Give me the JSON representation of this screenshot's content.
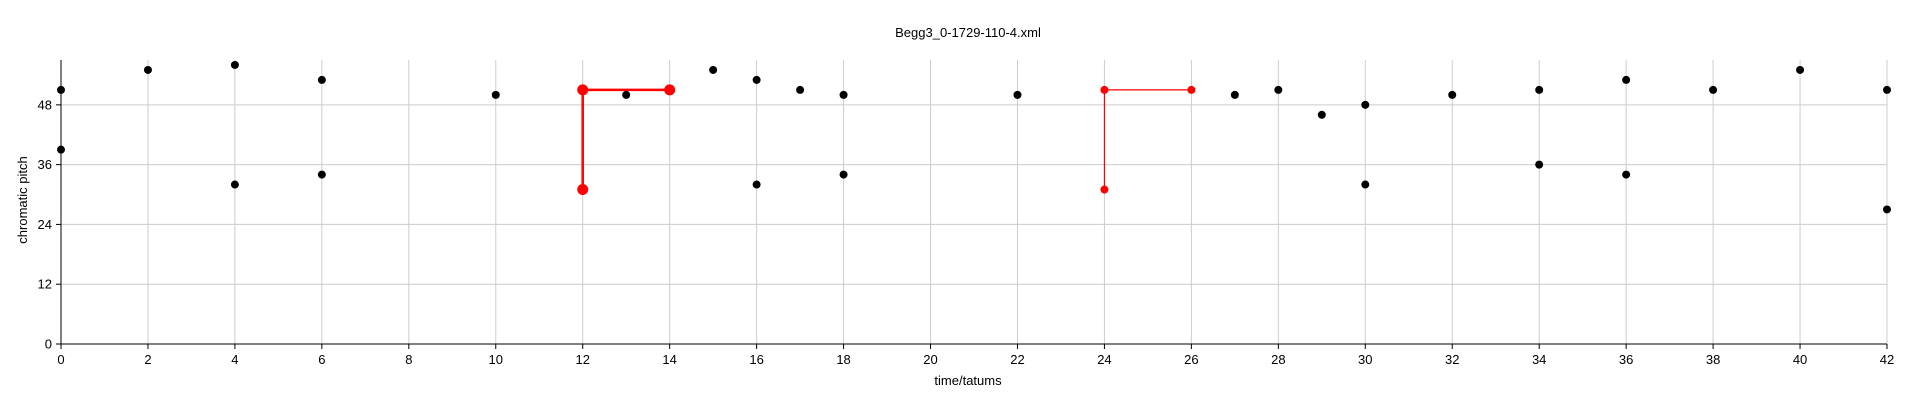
{
  "chart_data": {
    "type": "scatter",
    "title": "Begg3_0-1729-110-4.xml",
    "xlabel": "time/tatums",
    "ylabel": "chromatic pitch",
    "xlim": [
      0,
      42
    ],
    "ylim": [
      0,
      57
    ],
    "x_ticks": [
      0,
      2,
      4,
      6,
      8,
      10,
      12,
      14,
      16,
      18,
      20,
      22,
      24,
      26,
      28,
      30,
      32,
      34,
      36,
      38,
      40,
      42
    ],
    "y_ticks": [
      0,
      12,
      24,
      36,
      48
    ],
    "grid": true,
    "colors": {
      "points": "#000000",
      "highlight": "#ff0000",
      "grid": "#cccccc",
      "axis": "#000000"
    },
    "series": [
      {
        "points": [
          [
            0,
            51
          ],
          [
            0,
            39
          ],
          [
            2,
            55
          ],
          [
            4,
            56
          ],
          [
            4,
            32
          ],
          [
            6,
            53
          ],
          [
            6,
            34
          ],
          [
            10,
            50
          ],
          [
            13,
            50
          ],
          [
            15,
            55
          ],
          [
            16,
            53
          ],
          [
            16,
            32
          ],
          [
            17,
            51
          ],
          [
            18,
            50
          ],
          [
            18,
            34
          ],
          [
            22,
            50
          ],
          [
            27,
            50
          ],
          [
            28,
            51
          ],
          [
            29,
            46
          ],
          [
            30,
            48
          ],
          [
            30,
            32
          ],
          [
            32,
            50
          ],
          [
            34,
            51
          ],
          [
            34,
            36
          ],
          [
            36,
            53
          ],
          [
            36,
            34
          ],
          [
            38,
            51
          ],
          [
            40,
            55
          ],
          [
            42,
            51
          ],
          [
            42,
            27
          ]
        ]
      }
    ],
    "highlights": [
      {
        "points": [
          [
            12,
            51
          ],
          [
            14,
            51
          ],
          [
            12,
            31
          ]
        ],
        "path": [
          [
            12,
            31
          ],
          [
            12,
            51
          ],
          [
            14,
            51
          ]
        ],
        "emphasis": "bold"
      },
      {
        "points": [
          [
            24,
            51
          ],
          [
            26,
            51
          ],
          [
            24,
            31
          ]
        ],
        "path": [
          [
            24,
            31
          ],
          [
            24,
            51
          ],
          [
            26,
            51
          ]
        ],
        "emphasis": "normal"
      }
    ]
  }
}
